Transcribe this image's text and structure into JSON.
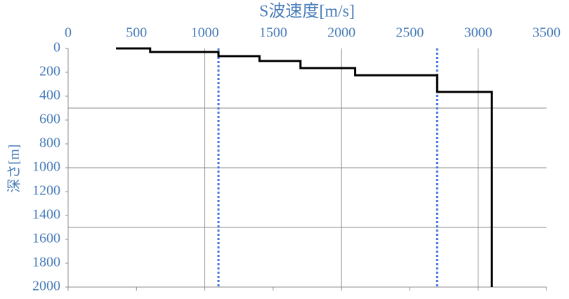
{
  "chart_data": {
    "type": "line",
    "x_label": "S波速度[m/s]",
    "y_label": "深さ[m]",
    "x": [
      350,
      600,
      600,
      1100,
      1100,
      1400,
      1400,
      1700,
      1700,
      2100,
      2100,
      2700,
      2700,
      3100,
      3100
    ],
    "series": [
      {
        "color": "#000000",
        "values": [
          0,
          0,
          30,
          30,
          65,
          65,
          105,
          105,
          165,
          165,
          225,
          225,
          365,
          365,
          2000
        ]
      }
    ],
    "reference_lines": [
      1100,
      2700
    ],
    "reference_color": "#3f76d9",
    "xlim": [
      0,
      3500
    ],
    "xticks": [
      0,
      500,
      1000,
      1500,
      2000,
      2500,
      3000,
      3500
    ],
    "ylim": [
      0,
      2000
    ],
    "yticks": [
      0,
      200,
      400,
      600,
      800,
      1000,
      1200,
      1400,
      1600,
      1800,
      2000
    ],
    "y_inverted": true,
    "x_axis_position": "top",
    "x_gridlines": [
      1000,
      2000,
      3000
    ],
    "y_gridlines": [
      500,
      1000,
      1500
    ]
  }
}
